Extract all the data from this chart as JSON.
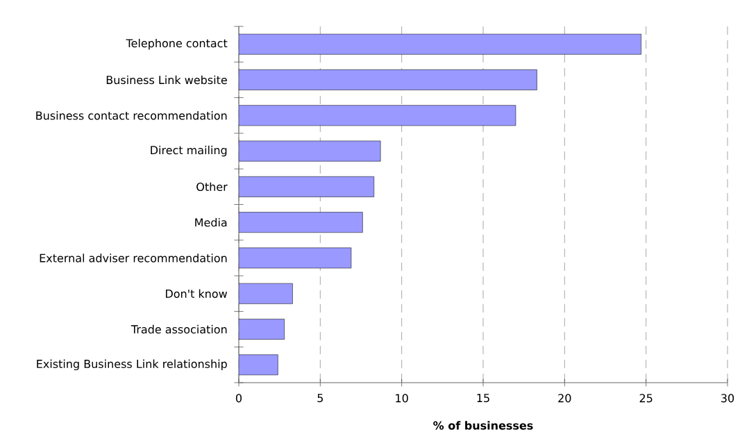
{
  "chart_data": {
    "type": "bar",
    "orientation": "horizontal",
    "categories": [
      "Telephone contact",
      "Business Link website",
      "Business contact recommendation",
      "Direct mailing",
      "Other",
      "Media",
      "External adviser recommendation",
      "Don't know",
      "Trade association",
      "Existing Business Link relationship"
    ],
    "values": [
      24.7,
      18.3,
      17.0,
      8.7,
      8.3,
      7.6,
      6.9,
      3.3,
      2.8,
      2.4
    ],
    "color": "#9999ff",
    "xlim": [
      0,
      30
    ],
    "xticks": [
      0,
      5,
      10,
      15,
      20,
      25,
      30
    ],
    "xlabel": "% of businesses",
    "grid": "x"
  }
}
